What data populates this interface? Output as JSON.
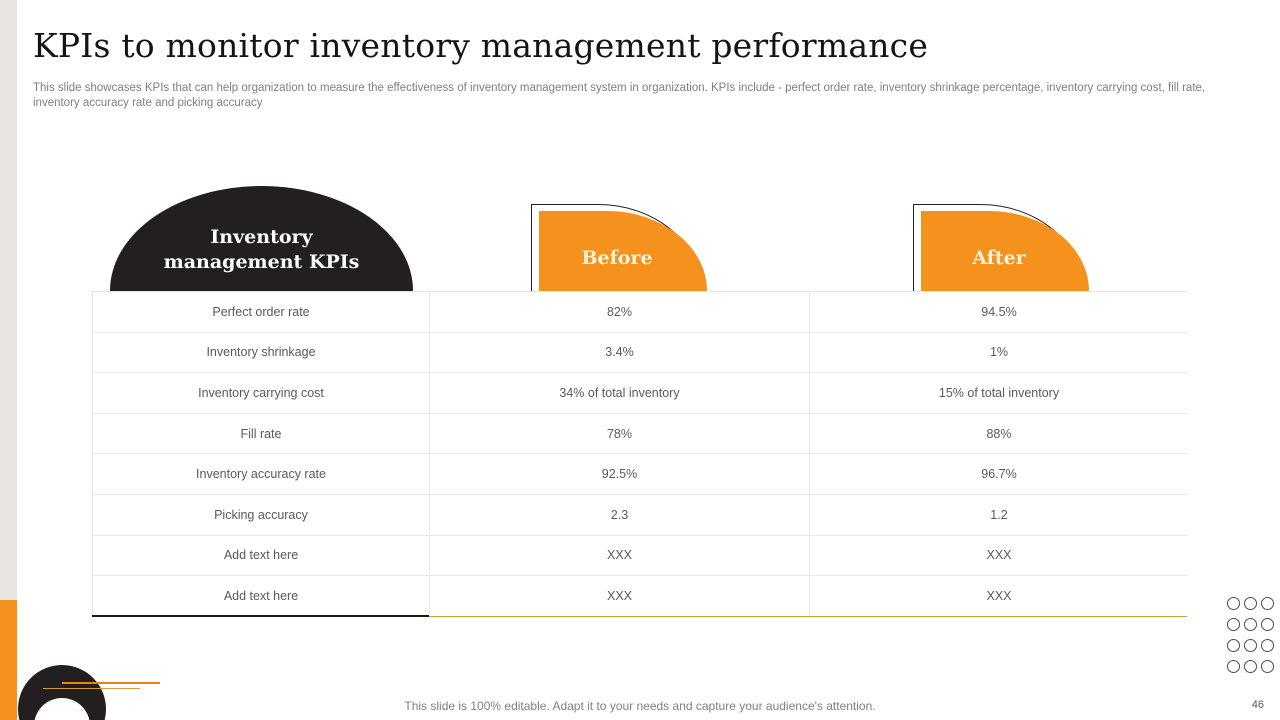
{
  "slide": {
    "title": "KPIs to monitor inventory management performance",
    "subtitle": "This slide showcases KPIs that can help organization to measure the effectiveness of inventory management system in organization. KPIs include - perfect order rate, inventory shrinkage percentage, inventory carrying cost, fill rate, inventory accuracy rate and picking accuracy",
    "footer_note": "This slide is 100% editable. Adapt it to your needs and capture your audience's attention.",
    "page_number": "46"
  },
  "table": {
    "header": {
      "kpi_label": "Inventory management KPIs",
      "before_label": "Before",
      "after_label": "After"
    },
    "rows": [
      {
        "kpi": "Perfect order rate",
        "before": "82%",
        "after": "94.5%"
      },
      {
        "kpi": "Inventory shrinkage",
        "before": "3.4%",
        "after": "1%"
      },
      {
        "kpi": "Inventory carrying cost",
        "before": "34% of total inventory",
        "after": "15% of total inventory"
      },
      {
        "kpi": "Fill rate",
        "before": "78%",
        "after": "88%"
      },
      {
        "kpi": "Inventory accuracy rate",
        "before": "92.5%",
        "after": "96.7%"
      },
      {
        "kpi": "Picking accuracy",
        "before": "2.3",
        "after": "1.2"
      },
      {
        "kpi": "Add text here",
        "before": "XXX",
        "after": "XXX"
      },
      {
        "kpi": "Add text here",
        "before": "XXX",
        "after": "XXX"
      }
    ]
  },
  "colors": {
    "accent_orange": "#F5921E",
    "dome_black": "#231F20",
    "gold_line": "#CBA135",
    "cream_text": "#FAF3DC",
    "table_text": "#5A5A5A",
    "muted_text": "#7F7F7F",
    "stripe_gray": "#E9E6E1"
  },
  "decorations": {
    "circle_grid": {
      "rows": 4,
      "cols": 3
    }
  }
}
